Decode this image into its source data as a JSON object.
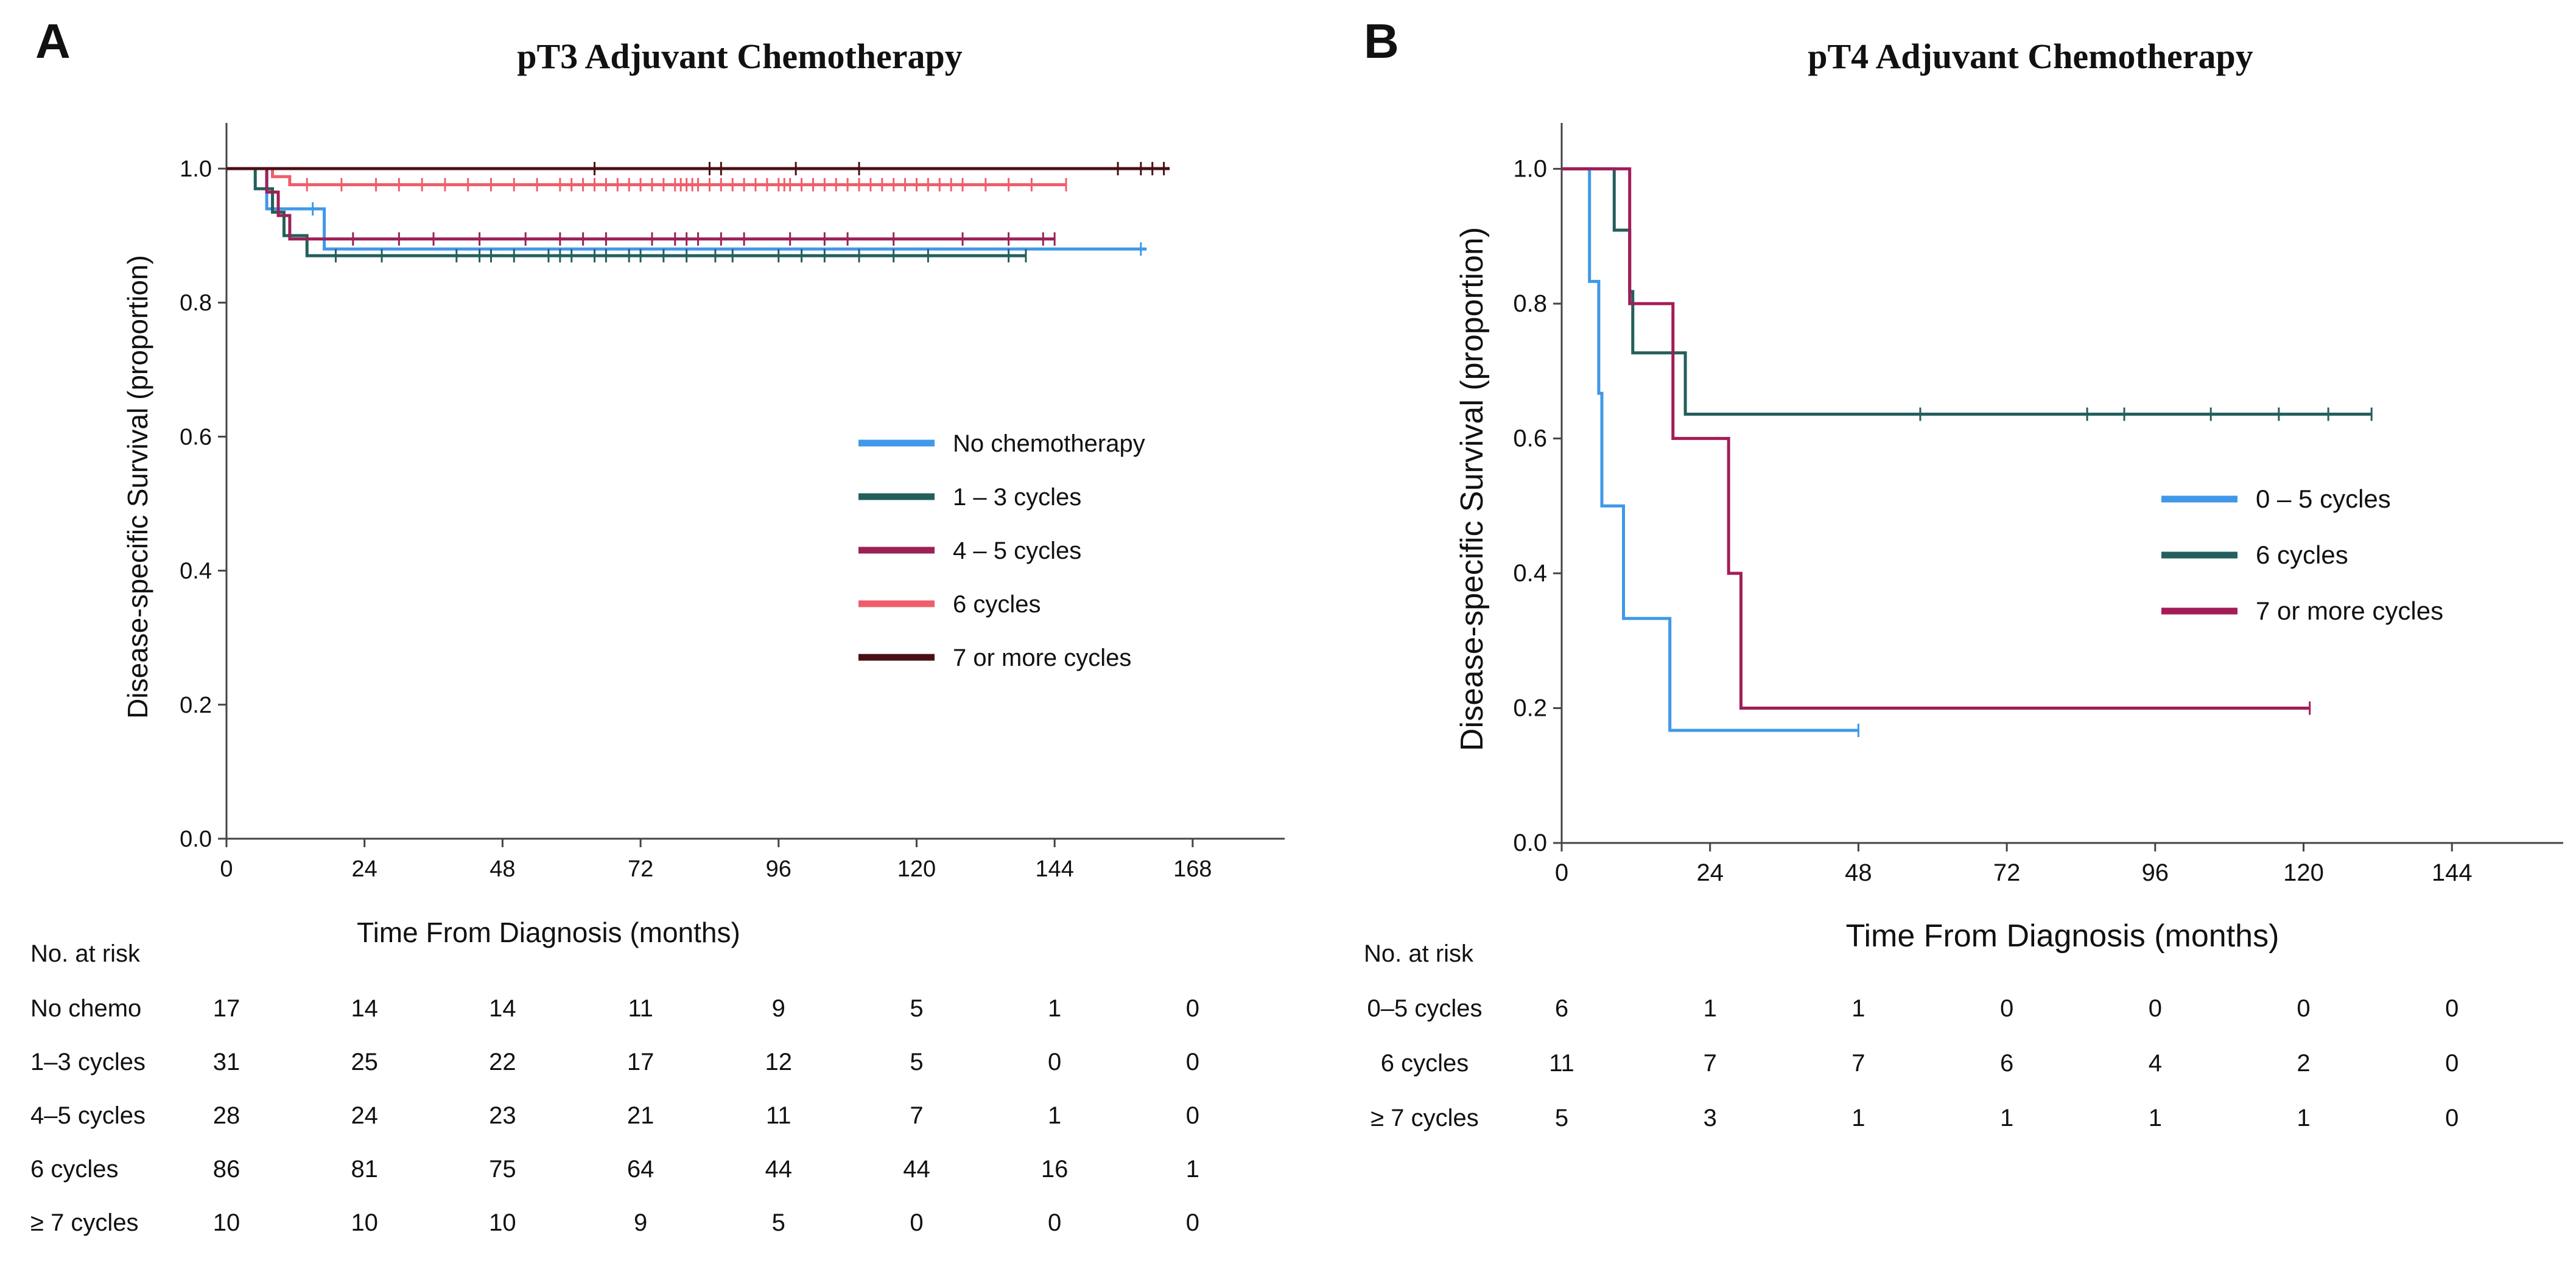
{
  "chart_data": [
    {
      "type": "line",
      "panel_label": "A",
      "title": "pT3 Adjuvant Chemotherapy",
      "xlabel": "Time From Diagnosis (months)",
      "ylabel": "Disease-specific Survival (proportion)",
      "xlim": [
        0,
        184
      ],
      "ylim": [
        0,
        1.05
      ],
      "xticks": [
        0,
        24,
        48,
        72,
        96,
        120,
        144,
        168
      ],
      "yticks": [
        0.0,
        0.2,
        0.4,
        0.6,
        0.8,
        1.0
      ],
      "ytick_labels": [
        "0.0",
        "0.2",
        "0.4",
        "0.6",
        "0.8",
        "1.0"
      ],
      "grid": false,
      "legend_position": "center-right",
      "series": [
        {
          "name": "No chemotherapy",
          "color": "#3f98e8",
          "steps": [
            [
              0,
              1.0
            ],
            [
              7,
              0.94
            ],
            [
              13,
              0.94
            ],
            [
              16,
              0.94
            ],
            [
              17,
              0.88
            ],
            [
              160,
              0.88
            ]
          ],
          "censors": [
            [
              15,
              0.94
            ],
            [
              159,
              0.88
            ]
          ]
        },
        {
          "name": "1 – 3 cycles",
          "color": "#235f5b",
          "steps": [
            [
              0,
              1.0
            ],
            [
              5,
              0.97
            ],
            [
              8,
              0.935
            ],
            [
              10,
              0.9
            ],
            [
              14,
              0.87
            ],
            [
              139,
              0.87
            ]
          ],
          "censors": [
            [
              19,
              0.87
            ],
            [
              27,
              0.87
            ],
            [
              40,
              0.87
            ],
            [
              44,
              0.87
            ],
            [
              46,
              0.87
            ],
            [
              50,
              0.87
            ],
            [
              56,
              0.87
            ],
            [
              58,
              0.87
            ],
            [
              60,
              0.87
            ],
            [
              64,
              0.87
            ],
            [
              66,
              0.87
            ],
            [
              70,
              0.87
            ],
            [
              72,
              0.87
            ],
            [
              76,
              0.87
            ],
            [
              80,
              0.87
            ],
            [
              85,
              0.87
            ],
            [
              88,
              0.87
            ],
            [
              96,
              0.87
            ],
            [
              100,
              0.87
            ],
            [
              104,
              0.87
            ],
            [
              110,
              0.87
            ],
            [
              116,
              0.87
            ],
            [
              122,
              0.87
            ],
            [
              136,
              0.87
            ],
            [
              139,
              0.87
            ]
          ]
        },
        {
          "name": "4 – 5 cycles",
          "color": "#9b2257",
          "steps": [
            [
              0,
              1.0
            ],
            [
              7,
              0.965
            ],
            [
              9,
              0.93
            ],
            [
              11,
              0.895
            ],
            [
              144,
              0.895
            ]
          ],
          "censors": [
            [
              22,
              0.895
            ],
            [
              30,
              0.895
            ],
            [
              36,
              0.895
            ],
            [
              44,
              0.895
            ],
            [
              52,
              0.895
            ],
            [
              58,
              0.895
            ],
            [
              62,
              0.895
            ],
            [
              66,
              0.895
            ],
            [
              74,
              0.895
            ],
            [
              78,
              0.895
            ],
            [
              80,
              0.895
            ],
            [
              82,
              0.895
            ],
            [
              86,
              0.895
            ],
            [
              90,
              0.895
            ],
            [
              98,
              0.895
            ],
            [
              104,
              0.895
            ],
            [
              108,
              0.895
            ],
            [
              116,
              0.895
            ],
            [
              128,
              0.895
            ],
            [
              136,
              0.895
            ],
            [
              142,
              0.895
            ],
            [
              144,
              0.895
            ]
          ]
        },
        {
          "name": "6 cycles",
          "color": "#ef5d6b",
          "steps": [
            [
              0,
              1.0
            ],
            [
              8,
              0.988
            ],
            [
              11,
              0.976
            ],
            [
              146,
              0.976
            ]
          ],
          "censors": [
            [
              14,
              0.976
            ],
            [
              20,
              0.976
            ],
            [
              26,
              0.976
            ],
            [
              30,
              0.976
            ],
            [
              34,
              0.976
            ],
            [
              38,
              0.976
            ],
            [
              42,
              0.976
            ],
            [
              46,
              0.976
            ],
            [
              50,
              0.976
            ],
            [
              54,
              0.976
            ],
            [
              58,
              0.976
            ],
            [
              60,
              0.976
            ],
            [
              62,
              0.976
            ],
            [
              64,
              0.976
            ],
            [
              66,
              0.976
            ],
            [
              68,
              0.976
            ],
            [
              70,
              0.976
            ],
            [
              72,
              0.976
            ],
            [
              74,
              0.976
            ],
            [
              76,
              0.976
            ],
            [
              78,
              0.976
            ],
            [
              79,
              0.976
            ],
            [
              80,
              0.976
            ],
            [
              81,
              0.976
            ],
            [
              82,
              0.976
            ],
            [
              84,
              0.976
            ],
            [
              86,
              0.976
            ],
            [
              88,
              0.976
            ],
            [
              90,
              0.976
            ],
            [
              92,
              0.976
            ],
            [
              94,
              0.976
            ],
            [
              96,
              0.976
            ],
            [
              97,
              0.976
            ],
            [
              98,
              0.976
            ],
            [
              100,
              0.976
            ],
            [
              102,
              0.976
            ],
            [
              104,
              0.976
            ],
            [
              106,
              0.976
            ],
            [
              108,
              0.976
            ],
            [
              110,
              0.976
            ],
            [
              112,
              0.976
            ],
            [
              114,
              0.976
            ],
            [
              116,
              0.976
            ],
            [
              118,
              0.976
            ],
            [
              120,
              0.976
            ],
            [
              122,
              0.976
            ],
            [
              124,
              0.976
            ],
            [
              126,
              0.976
            ],
            [
              128,
              0.976
            ],
            [
              132,
              0.976
            ],
            [
              136,
              0.976
            ],
            [
              140,
              0.976
            ],
            [
              146,
              0.976
            ]
          ]
        },
        {
          "name": "7 or more cycles",
          "color": "#4a0f12",
          "steps": [
            [
              0,
              1.0
            ],
            [
              164,
              1.0
            ]
          ],
          "censors": [
            [
              64,
              1.0
            ],
            [
              84,
              1.0
            ],
            [
              86,
              1.0
            ],
            [
              99,
              1.0
            ],
            [
              110,
              1.0
            ],
            [
              155,
              1.0
            ],
            [
              159,
              1.0
            ],
            [
              161,
              1.0
            ],
            [
              163,
              1.0
            ]
          ]
        }
      ],
      "risk_table": {
        "header": "No. at risk",
        "rows": [
          {
            "label": "No chemo",
            "values": [
              "17",
              "14",
              "14",
              "11",
              "9",
              "5",
              "1",
              "0"
            ]
          },
          {
            "label": "1–3 cycles",
            "values": [
              "31",
              "25",
              "22",
              "17",
              "12",
              "5",
              "0",
              "0"
            ]
          },
          {
            "label": "4–5 cycles",
            "values": [
              "28",
              "24",
              "23",
              "21",
              "11",
              "7",
              "1",
              "0"
            ]
          },
          {
            "label": "6 cycles",
            "values": [
              "86",
              "81",
              "75",
              "64",
              "44",
              "44",
              "16",
              "1"
            ]
          },
          {
            "label": "≥ 7 cycles",
            "values": [
              "10",
              "10",
              "10",
              "9",
              "5",
              "0",
              "0",
              "0"
            ]
          }
        ]
      }
    },
    {
      "type": "line",
      "panel_label": "B",
      "title": "pT4 Adjuvant Chemotherapy",
      "xlabel": "Time From Diagnosis (months)",
      "ylabel": "Disease-specific Survival (proportion)",
      "xlim": [
        0,
        162
      ],
      "ylim": [
        0,
        1.05
      ],
      "xticks": [
        0,
        24,
        48,
        72,
        96,
        120,
        144
      ],
      "yticks": [
        0.0,
        0.2,
        0.4,
        0.6,
        0.8,
        1.0
      ],
      "ytick_labels": [
        "0.0",
        "0.2",
        "0.4",
        "0.6",
        "0.8",
        "1.0"
      ],
      "grid": false,
      "legend_position": "center-right",
      "series": [
        {
          "name": "0 – 5 cycles",
          "color": "#3f98e8",
          "steps": [
            [
              0,
              1.0
            ],
            [
              4.5,
              0.833
            ],
            [
              6,
              0.667
            ],
            [
              6.5,
              0.5
            ],
            [
              10,
              0.333
            ],
            [
              17.5,
              0.167
            ],
            [
              48,
              0.167
            ]
          ],
          "censors": [
            [
              48,
              0.167
            ]
          ]
        },
        {
          "name": "6 cycles",
          "color": "#235f5b",
          "steps": [
            [
              0,
              1.0
            ],
            [
              8.5,
              0.909
            ],
            [
              11,
              0.818
            ],
            [
              11.5,
              0.727
            ],
            [
              20,
              0.636
            ],
            [
              131,
              0.636
            ]
          ],
          "censors": [
            [
              58,
              0.636
            ],
            [
              85,
              0.636
            ],
            [
              91,
              0.636
            ],
            [
              105,
              0.636
            ],
            [
              116,
              0.636
            ],
            [
              124,
              0.636
            ],
            [
              131,
              0.636
            ]
          ]
        },
        {
          "name": "7 or more cycles",
          "color": "#a31c58",
          "steps": [
            [
              0,
              1.0
            ],
            [
              11,
              0.8
            ],
            [
              18,
              0.6
            ],
            [
              27,
              0.4
            ],
            [
              29,
              0.2
            ],
            [
              121,
              0.2
            ]
          ],
          "censors": [
            [
              121,
              0.2
            ]
          ]
        }
      ],
      "risk_table": {
        "header": "No. at risk",
        "rows": [
          {
            "label": "0–5 cycles",
            "values": [
              "6",
              "1",
              "1",
              "0",
              "0",
              "0",
              "0"
            ]
          },
          {
            "label": "6 cycles",
            "values": [
              "11",
              "7",
              "7",
              "6",
              "4",
              "2",
              "0"
            ]
          },
          {
            "label": "≥ 7 cycles",
            "values": [
              "5",
              "3",
              "1",
              "1",
              "1",
              "1",
              "0"
            ]
          }
        ]
      }
    }
  ]
}
